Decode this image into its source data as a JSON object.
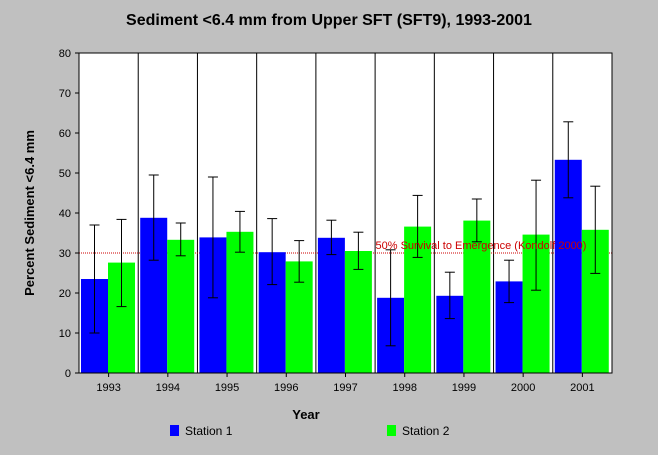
{
  "chart_data": {
    "type": "bar",
    "title": "Sediment <6.4 mm from Upper SFT (SFT9), 1993-2001",
    "xlabel": "Year",
    "ylabel": "Percent Sediment <6.4 mm",
    "ylim": [
      0,
      80
    ],
    "yticks": [
      0,
      10,
      20,
      30,
      40,
      50,
      60,
      70,
      80
    ],
    "grid": "vertical lines between categories",
    "legend_position": "bottom",
    "categories": [
      "1993",
      "1994",
      "1995",
      "1996",
      "1997",
      "1998",
      "1999",
      "2000",
      "2001"
    ],
    "series": [
      {
        "name": "Station 1",
        "color": "#0000ff",
        "values": [
          23.5,
          38.8,
          33.9,
          30.2,
          33.8,
          18.8,
          19.3,
          22.9,
          53.3
        ],
        "error_low": [
          10.0,
          28.2,
          18.8,
          22.1,
          29.6,
          6.8,
          13.6,
          17.6,
          43.8
        ],
        "error_high": [
          37.0,
          49.5,
          49.0,
          38.6,
          38.2,
          30.8,
          25.2,
          28.2,
          62.8
        ]
      },
      {
        "name": "Station 2",
        "color": "#00ff00",
        "values": [
          27.6,
          33.3,
          35.3,
          27.9,
          30.5,
          36.6,
          38.1,
          34.6,
          35.8
        ],
        "error_low": [
          16.6,
          29.3,
          30.2,
          22.7,
          25.9,
          28.9,
          32.8,
          20.7,
          24.9
        ],
        "error_high": [
          38.4,
          37.5,
          40.4,
          33.1,
          35.2,
          44.4,
          43.5,
          48.2,
          46.7
        ]
      }
    ],
    "reference_line": {
      "value": 30,
      "label": "50% Survival to Emergence (Kondolf 2000)",
      "color": "#cc0000"
    }
  }
}
